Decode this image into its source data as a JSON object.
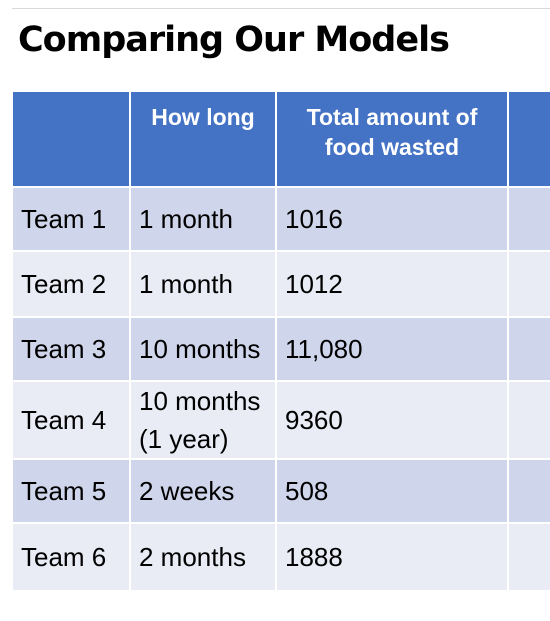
{
  "title": "Comparing Our Models",
  "table": {
    "headers": [
      "",
      "How long",
      "Total amount of food wasted",
      ""
    ],
    "rows": [
      {
        "team": "Team 1",
        "duration": "1 month",
        "food_wasted": "1016"
      },
      {
        "team": "Team 2",
        "duration": "1 month",
        "food_wasted": "1012"
      },
      {
        "team": "Team 3",
        "duration": "10 months",
        "food_wasted": "11,080"
      },
      {
        "team": "Team 4",
        "duration": "10 months (1 year)",
        "food_wasted": "9360"
      },
      {
        "team": "Team 5",
        "duration": "2 weeks",
        "food_wasted": "508"
      },
      {
        "team": "Team 6",
        "duration": "2 months",
        "food_wasted": "1888"
      }
    ]
  },
  "colors": {
    "header_fill": "#4472c4",
    "row_dark_fill": "#cfd5ea",
    "row_light_fill": "#e9ebf5"
  }
}
